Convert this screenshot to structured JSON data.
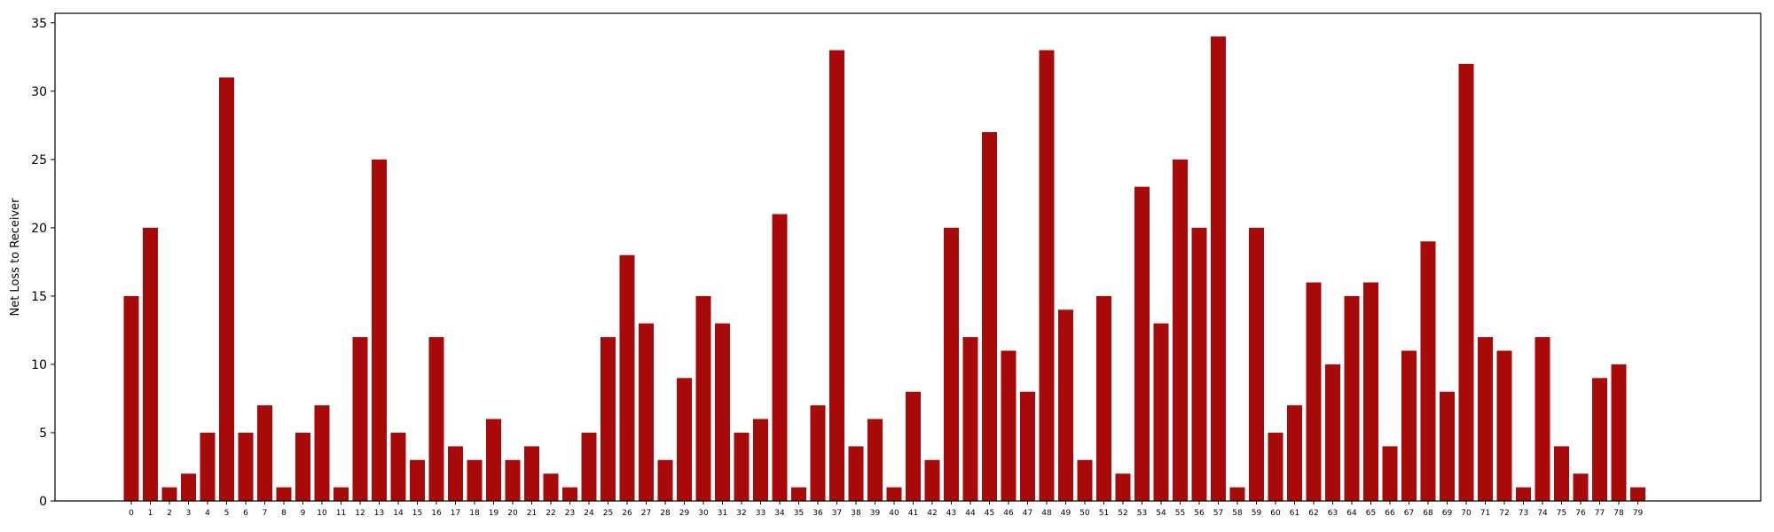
{
  "chart_data": {
    "type": "bar",
    "title": "",
    "xlabel": "",
    "ylabel": "Net Loss to Receiver",
    "ylim": [
      0,
      35.7
    ],
    "yticks": [
      0,
      5,
      10,
      15,
      20,
      25,
      30,
      35
    ],
    "grid": false,
    "bar_color": "#a80a0a",
    "categories": [
      "0",
      "1",
      "2",
      "3",
      "4",
      "5",
      "6",
      "7",
      "8",
      "9",
      "10",
      "11",
      "12",
      "13",
      "14",
      "15",
      "16",
      "17",
      "18",
      "19",
      "20",
      "21",
      "22",
      "23",
      "24",
      "25",
      "26",
      "27",
      "28",
      "29",
      "30",
      "31",
      "32",
      "33",
      "34",
      "35",
      "36",
      "37",
      "38",
      "39",
      "40",
      "41",
      "42",
      "43",
      "44",
      "45",
      "46",
      "47",
      "48",
      "49",
      "50",
      "51",
      "52",
      "53",
      "54",
      "55",
      "56",
      "57",
      "58",
      "59",
      "60",
      "61",
      "62",
      "63",
      "64",
      "65",
      "66",
      "67",
      "68",
      "69",
      "70",
      "71",
      "72",
      "73",
      "74",
      "75",
      "76",
      "77",
      "78",
      "79"
    ],
    "values": [
      15,
      20,
      1,
      2,
      5,
      31,
      5,
      7,
      1,
      5,
      7,
      1,
      12,
      25,
      5,
      3,
      12,
      4,
      3,
      6,
      3,
      4,
      2,
      1,
      5,
      12,
      18,
      13,
      3,
      9,
      15,
      13,
      5,
      6,
      21,
      1,
      7,
      33,
      4,
      6,
      1,
      8,
      3,
      20,
      12,
      27,
      11,
      8,
      33,
      14,
      3,
      15,
      2,
      23,
      13,
      25,
      20,
      34,
      1,
      20,
      5,
      7,
      16,
      10,
      15,
      16,
      4,
      11,
      19,
      8,
      32,
      12,
      11,
      1,
      12,
      4,
      2,
      9,
      10,
      1
    ]
  }
}
